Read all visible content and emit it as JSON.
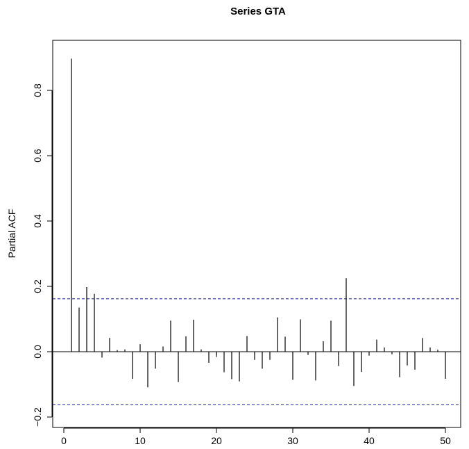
{
  "chart_data": {
    "type": "bar",
    "title": "Series  GTA",
    "xlabel": "",
    "ylabel": "Partial ACF",
    "xlim": [
      -1,
      51
    ],
    "ylim": [
      -0.2,
      0.9
    ],
    "x_ticks": [
      0,
      10,
      20,
      30,
      40,
      50
    ],
    "y_ticks": [
      -0.2,
      0.0,
      0.2,
      0.4,
      0.6,
      0.8
    ],
    "x_tick_labels": [
      "0",
      "10",
      "20",
      "30",
      "40",
      "50"
    ],
    "y_tick_labels": [
      "−0.2",
      "0.0",
      "0.2",
      "0.4",
      "0.6",
      "0.8"
    ],
    "confidence_band": [
      0.162,
      -0.162
    ],
    "grid": false,
    "series": [
      {
        "lags": [
          1,
          2,
          3,
          4,
          5,
          6,
          7,
          8,
          9,
          10,
          11,
          12,
          13,
          14,
          15,
          16,
          17,
          18,
          19,
          20,
          21,
          22,
          23,
          24,
          25,
          26,
          27,
          28,
          29,
          30,
          31,
          32,
          33,
          34,
          35,
          36,
          37,
          38,
          39,
          40,
          41,
          42,
          43,
          44,
          45,
          46,
          47,
          48,
          49,
          50
        ],
        "values": [
          0.897,
          0.135,
          0.198,
          0.177,
          -0.018,
          0.042,
          0.005,
          0.007,
          -0.083,
          0.023,
          -0.109,
          -0.052,
          0.016,
          0.095,
          -0.093,
          0.047,
          0.098,
          0.007,
          -0.034,
          -0.016,
          -0.063,
          -0.084,
          -0.091,
          0.048,
          -0.025,
          -0.052,
          -0.025,
          0.105,
          0.046,
          -0.086,
          0.099,
          -0.01,
          -0.088,
          0.032,
          0.095,
          -0.044,
          0.225,
          -0.105,
          -0.062,
          -0.012,
          0.037,
          0.013,
          -0.008,
          -0.078,
          -0.042,
          -0.055,
          0.042,
          0.013,
          0.006,
          -0.083
        ]
      }
    ],
    "colors": {
      "bars": "#000000",
      "band": "#1a1a9a",
      "frame": "#000000"
    }
  }
}
